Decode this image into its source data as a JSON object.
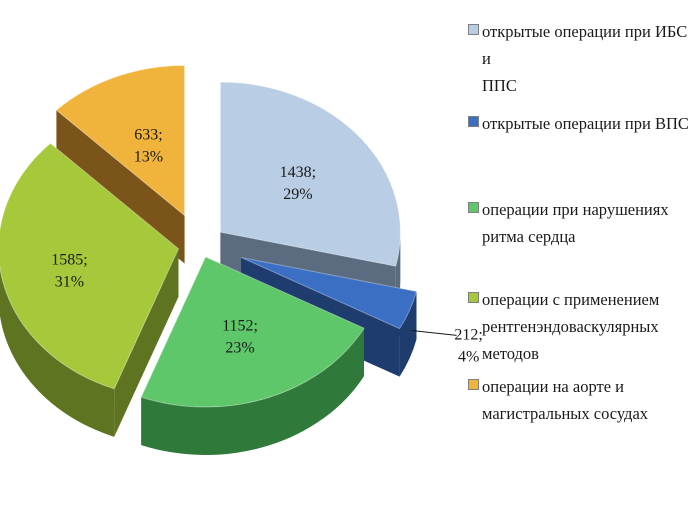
{
  "chart_data": {
    "type": "pie",
    "style": "3d-exploded",
    "title": "",
    "legend_position": "right",
    "series": [
      {
        "name": "",
        "categories": [
          "открытые операции при ИБС и ППС",
          "открытые операции при ВПС",
          "операции при нарушениях ритма сердца",
          "операции с применением рентгенэндоваскулярных методов",
          "операции на аорте и магистральных сосудах"
        ],
        "values": [
          1438,
          212,
          1152,
          1585,
          633
        ],
        "percent_labels": [
          "29%",
          "4%",
          "23%",
          "31%",
          "13%"
        ],
        "value_labels": [
          "1438;",
          "212;",
          "1152;",
          "1585;",
          "633;"
        ],
        "colors": [
          "#b9cde5",
          "#3a6fc4",
          "#5dc76a",
          "#a6c93b",
          "#f0b43c"
        ],
        "side_colors": [
          "#5c6c80",
          "#1f3c6e",
          "#2f7a3b",
          "#5f7420",
          "#7a5418"
        ]
      }
    ],
    "legend": [
      {
        "lines": [
          "открытые операции при ИБС и",
          "ППС"
        ],
        "color": "#b9cde5"
      },
      {
        "lines": [
          "открытые операции при ВПС"
        ],
        "color": "#3a6fc4"
      },
      {
        "lines": [
          "операции при нарушениях",
          "ритма сердца"
        ],
        "color": "#5dc76a"
      },
      {
        "lines": [
          "операции с применением",
          "рентгенэндоваскулярных",
          "методов"
        ],
        "color": "#a6c93b"
      },
      {
        "lines": [
          "операции на аорте и",
          "магистральных сосудах"
        ],
        "color": "#f0b43c"
      }
    ]
  }
}
